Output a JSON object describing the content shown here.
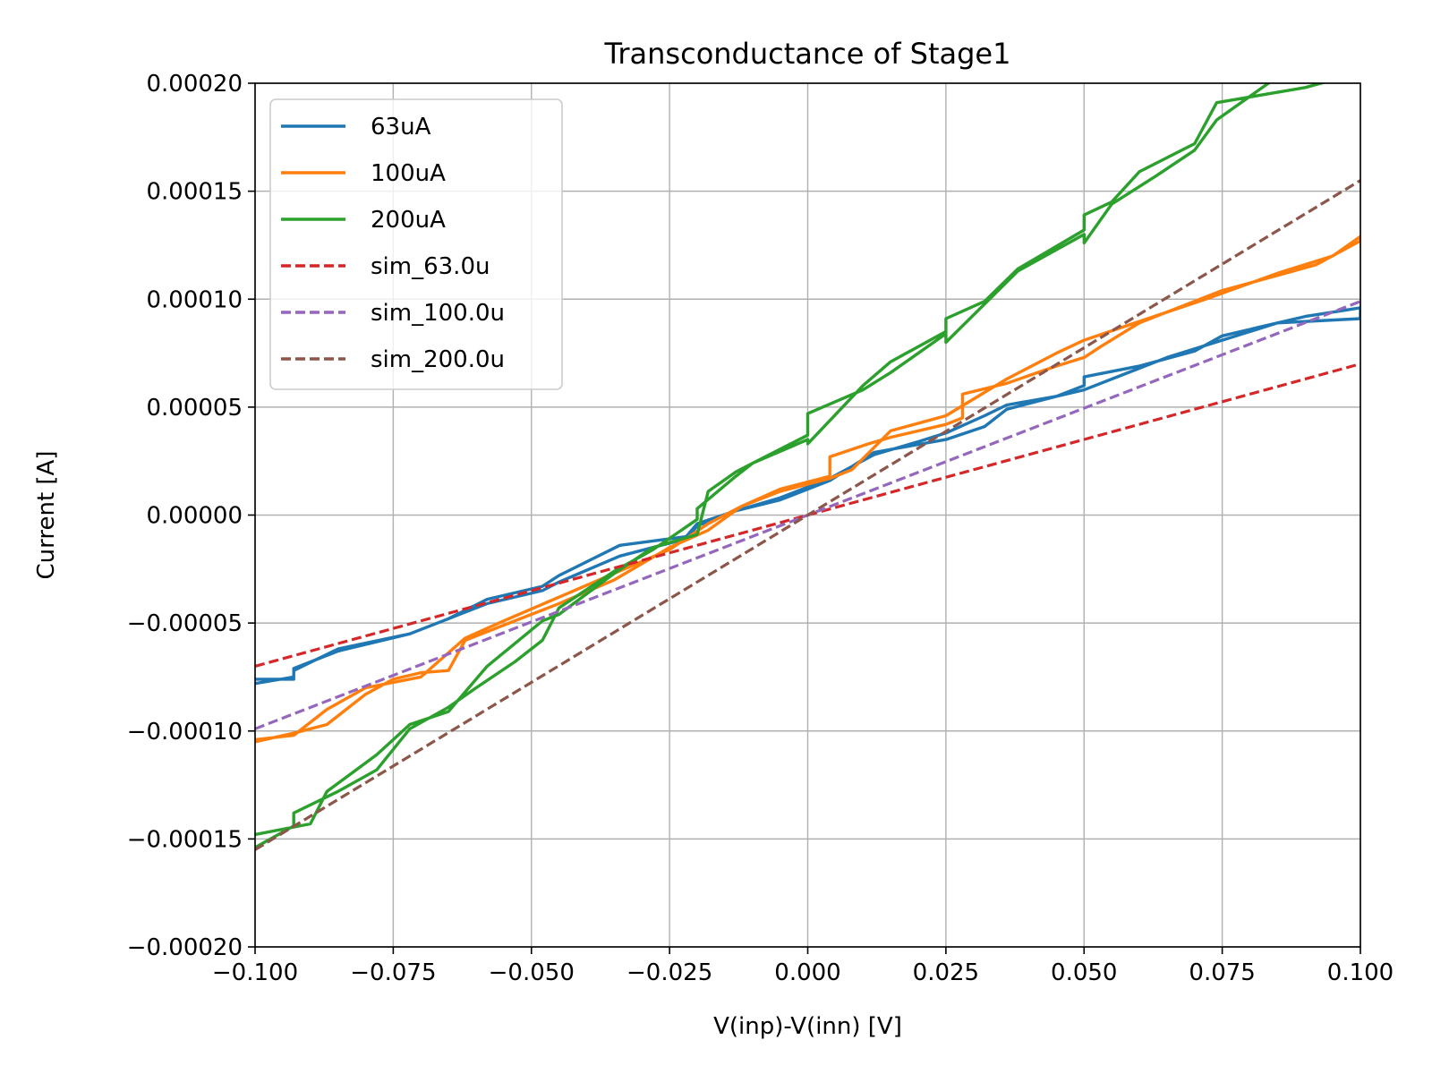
{
  "chart_data": {
    "type": "line",
    "title": "Transconductance of Stage1",
    "xlabel": "V(inp)-V(inn) [V]",
    "ylabel": "Current [A]",
    "xlim": [
      -0.1,
      0.1
    ],
    "ylim": [
      -0.0002,
      0.0002
    ],
    "xticks": [
      -0.1,
      -0.075,
      -0.05,
      -0.025,
      0.0,
      0.025,
      0.05,
      0.075,
      0.1
    ],
    "xtick_labels": [
      "−0.100",
      "−0.075",
      "−0.050",
      "−0.025",
      "0.000",
      "0.025",
      "0.050",
      "0.075",
      "0.100"
    ],
    "yticks": [
      -0.0002,
      -0.00015,
      -0.0001,
      -5e-05,
      0.0,
      5e-05,
      0.0001,
      0.00015,
      0.0002
    ],
    "ytick_labels": [
      "−0.00020",
      "−0.00015",
      "−0.00010",
      "−0.00005",
      "0.00000",
      "0.00005",
      "0.00010",
      "0.00015",
      "0.00020"
    ],
    "grid": true,
    "legend_position": "top-left",
    "series": [
      {
        "name": "63uA",
        "color": "#1f77b4",
        "dash": "solid",
        "x": [
          -0.1,
          -0.093,
          -0.093,
          -0.085,
          -0.072,
          -0.065,
          -0.058,
          -0.048,
          -0.045,
          -0.034,
          -0.022,
          -0.02,
          -0.013,
          -0.005,
          0.004,
          0.012,
          0.02,
          0.025,
          0.032,
          0.036,
          0.045,
          0.05,
          0.05,
          0.06,
          0.07,
          0.075,
          0.085,
          0.1,
          0.1,
          0.09,
          0.085,
          0.075,
          0.065,
          0.05,
          0.045,
          0.036,
          0.032,
          0.025,
          0.012,
          0.004,
          -0.005,
          -0.013,
          -0.02,
          -0.022,
          -0.034,
          -0.045,
          -0.048,
          -0.058,
          -0.065,
          -0.072,
          -0.085,
          -0.093,
          -0.093,
          -0.1
        ],
        "y": [
          -7.8e-05,
          -7.5e-05,
          -7.1e-05,
          -6.3e-05,
          -5.5e-05,
          -4.8e-05,
          -3.9e-05,
          -3.3e-05,
          -2.8e-05,
          -1.4e-05,
          -1e-05,
          -4e-06,
          2e-06,
          8e-06,
          1.7e-05,
          2.8e-05,
          3.4e-05,
          3.8e-05,
          4.6e-05,
          5.1e-05,
          5.5e-05,
          6e-05,
          6.4e-05,
          6.9e-05,
          7.6e-05,
          8.3e-05,
          8.9e-05,
          9.1e-05,
          9.6e-05,
          9.2e-05,
          8.9e-05,
          8.1e-05,
          7.3e-05,
          5.8e-05,
          5.5e-05,
          4.9e-05,
          4.1e-05,
          3.5e-05,
          2.9e-05,
          1.6e-05,
          7e-06,
          2e-06,
          -5e-06,
          -1.1e-05,
          -1.9e-05,
          -3.1e-05,
          -3.5e-05,
          -4.1e-05,
          -4.8e-05,
          -5.5e-05,
          -6.2e-05,
          -7.2e-05,
          -7.6e-05,
          -7.6e-05
        ]
      },
      {
        "name": "100uA",
        "color": "#ff7f0e",
        "dash": "solid",
        "x": [
          -0.1,
          -0.093,
          -0.087,
          -0.08,
          -0.075,
          -0.07,
          -0.065,
          -0.062,
          -0.055,
          -0.045,
          -0.035,
          -0.025,
          -0.018,
          -0.012,
          -0.005,
          0.004,
          0.004,
          0.011,
          0.015,
          0.025,
          0.028,
          0.028,
          0.036,
          0.045,
          0.05,
          0.053,
          0.06,
          0.065,
          0.072,
          0.085,
          0.095,
          0.1,
          0.1,
          0.092,
          0.085,
          0.075,
          0.065,
          0.05,
          0.045,
          0.036,
          0.025,
          0.015,
          0.008,
          0.004,
          0.004,
          -0.005,
          -0.012,
          -0.018,
          -0.025,
          -0.035,
          -0.045,
          -0.055,
          -0.062,
          -0.07,
          -0.08,
          -0.087,
          -0.093,
          -0.1
        ],
        "y": [
          -0.000105,
          -0.000101,
          -9.7e-05,
          -8.3e-05,
          -7.6e-05,
          -7.3e-05,
          -7.2e-05,
          -5.8e-05,
          -5.1e-05,
          -4.1e-05,
          -3e-05,
          -1.5e-05,
          -7e-06,
          4e-06,
          1.1e-05,
          1.7e-05,
          2.7e-05,
          3.3e-05,
          3.6e-05,
          4.2e-05,
          4.5e-05,
          5.6e-05,
          6.1e-05,
          6.9e-05,
          7.3e-05,
          7.8e-05,
          8.9e-05,
          9.4e-05,
          0.0001,
          0.000112,
          0.00012,
          0.000129,
          0.000127,
          0.000116,
          0.000111,
          0.000104,
          9.4e-05,
          8.1e-05,
          7.5e-05,
          6.3e-05,
          4.6e-05,
          3.9e-05,
          2.1e-05,
          1.7e-05,
          1.8e-05,
          1.2e-05,
          4e-06,
          -4e-06,
          -1.6e-05,
          -2.7e-05,
          -3.8e-05,
          -4.9e-05,
          -5.7e-05,
          -7.5e-05,
          -8e-05,
          -9e-05,
          -0.000102,
          -0.000104
        ]
      },
      {
        "name": "200uA",
        "color": "#2ca02c",
        "dash": "solid",
        "x": [
          -0.1,
          -0.093,
          -0.093,
          -0.085,
          -0.078,
          -0.072,
          -0.065,
          -0.06,
          -0.053,
          -0.048,
          -0.045,
          -0.035,
          -0.028,
          -0.02,
          -0.02,
          -0.013,
          -0.01,
          0.0,
          0.0,
          0.01,
          0.015,
          0.025,
          0.025,
          0.032,
          0.038,
          0.05,
          0.05,
          0.055,
          0.06,
          0.07,
          0.074,
          0.09,
          0.1,
          0.085,
          0.074,
          0.07,
          0.063,
          0.055,
          0.05,
          0.05,
          0.038,
          0.025,
          0.025,
          0.015,
          0.01,
          0.0,
          0.0,
          -0.01,
          -0.013,
          -0.018,
          -0.02,
          -0.028,
          -0.035,
          -0.045,
          -0.048,
          -0.058,
          -0.065,
          -0.072,
          -0.078,
          -0.087,
          -0.09,
          -0.1
        ],
        "y": [
          -0.000154,
          -0.000144,
          -0.000138,
          -0.000128,
          -0.000118,
          -9.9e-05,
          -8.9e-05,
          -8e-05,
          -6.8e-05,
          -5.8e-05,
          -4.3e-05,
          -2.6e-05,
          -1.6e-05,
          -2e-06,
          3e-06,
          1.8e-05,
          2.4e-05,
          3.7e-05,
          4.7e-05,
          5.8e-05,
          6.6e-05,
          8.4e-05,
          9.1e-05,
          9.9e-05,
          0.000114,
          0.000132,
          0.000139,
          0.000145,
          0.000159,
          0.000172,
          0.000191,
          0.000198,
          0.000205,
          0.000203,
          0.000183,
          0.000169,
          0.000157,
          0.000144,
          0.000126,
          0.00013,
          0.000113,
          8e-05,
          8.5e-05,
          7.1e-05,
          6e-05,
          3.3e-05,
          3.5e-05,
          2.4e-05,
          2e-05,
          1.1e-05,
          -9e-06,
          -1.5e-05,
          -2.7e-05,
          -4.6e-05,
          -4.9e-05,
          -7e-05,
          -9.1e-05,
          -9.7e-05,
          -0.000111,
          -0.000128,
          -0.000143,
          -0.000148
        ]
      },
      {
        "name": "sim_63.0u",
        "color": "#d62728",
        "dash": "dashed",
        "x": [
          -0.1,
          0.1
        ],
        "y": [
          -7e-05,
          7e-05
        ]
      },
      {
        "name": "sim_100.0u",
        "color": "#9467bd",
        "dash": "dashed",
        "x": [
          -0.1,
          0.1
        ],
        "y": [
          -9.9e-05,
          9.9e-05
        ]
      },
      {
        "name": "sim_200.0u",
        "color": "#8c564b",
        "dash": "dashed",
        "x": [
          -0.1,
          0.1
        ],
        "y": [
          -0.000155,
          0.000155
        ]
      }
    ]
  }
}
